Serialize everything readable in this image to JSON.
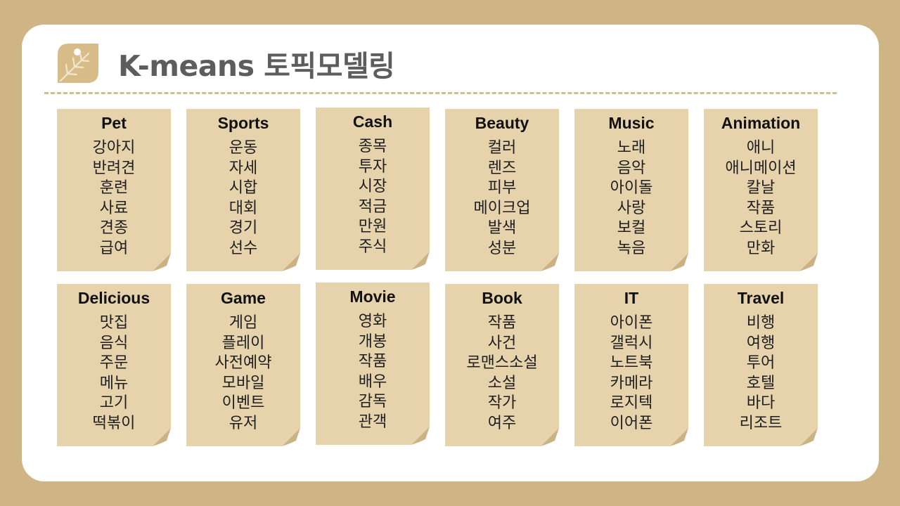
{
  "title": "K-means 토픽모델링",
  "colors": {
    "background": "#cfb585",
    "card": "#ffffff",
    "note": "#e6d3ab",
    "note_curl": "#cbb285",
    "accent": "#d8bc87",
    "title_text": "#5d5d5d",
    "divider": "#d4bc90"
  },
  "icons": {
    "logo": "leaf-icon",
    "note_corner": "page-curl-icon"
  },
  "topics": [
    {
      "name": "Pet",
      "words": [
        "강아지",
        "반려견",
        "훈련",
        "사료",
        "견종",
        "급여"
      ]
    },
    {
      "name": "Sports",
      "words": [
        "운동",
        "자세",
        "시합",
        "대회",
        "경기",
        "선수"
      ]
    },
    {
      "name": "Cash",
      "words": [
        "종목",
        "투자",
        "시장",
        "적금",
        "만원",
        "주식"
      ]
    },
    {
      "name": "Beauty",
      "words": [
        "컬러",
        "렌즈",
        "피부",
        "메이크업",
        "발색",
        "성분"
      ]
    },
    {
      "name": "Music",
      "words": [
        "노래",
        "음악",
        "아이돌",
        "사랑",
        "보컬",
        "녹음"
      ]
    },
    {
      "name": "Animation",
      "words": [
        "애니",
        "애니메이션",
        "칼날",
        "작품",
        "스토리",
        "만화"
      ]
    },
    {
      "name": "Delicious",
      "words": [
        "맛집",
        "음식",
        "주문",
        "메뉴",
        "고기",
        "떡볶이"
      ]
    },
    {
      "name": "Game",
      "words": [
        "게임",
        "플레이",
        "사전예약",
        "모바일",
        "이벤트",
        "유저"
      ]
    },
    {
      "name": "Movie",
      "words": [
        "영화",
        "개봉",
        "작품",
        "배우",
        "감독",
        "관객"
      ]
    },
    {
      "name": "Book",
      "words": [
        "작품",
        "사건",
        "로맨스소설",
        "소설",
        "작가",
        "여주"
      ]
    },
    {
      "name": "IT",
      "words": [
        "아이폰",
        "갤럭시",
        "노트북",
        "카메라",
        "로지텍",
        "이어폰"
      ]
    },
    {
      "name": "Travel",
      "words": [
        "비행",
        "여행",
        "투어",
        "호텔",
        "바다",
        "리조트"
      ]
    }
  ]
}
